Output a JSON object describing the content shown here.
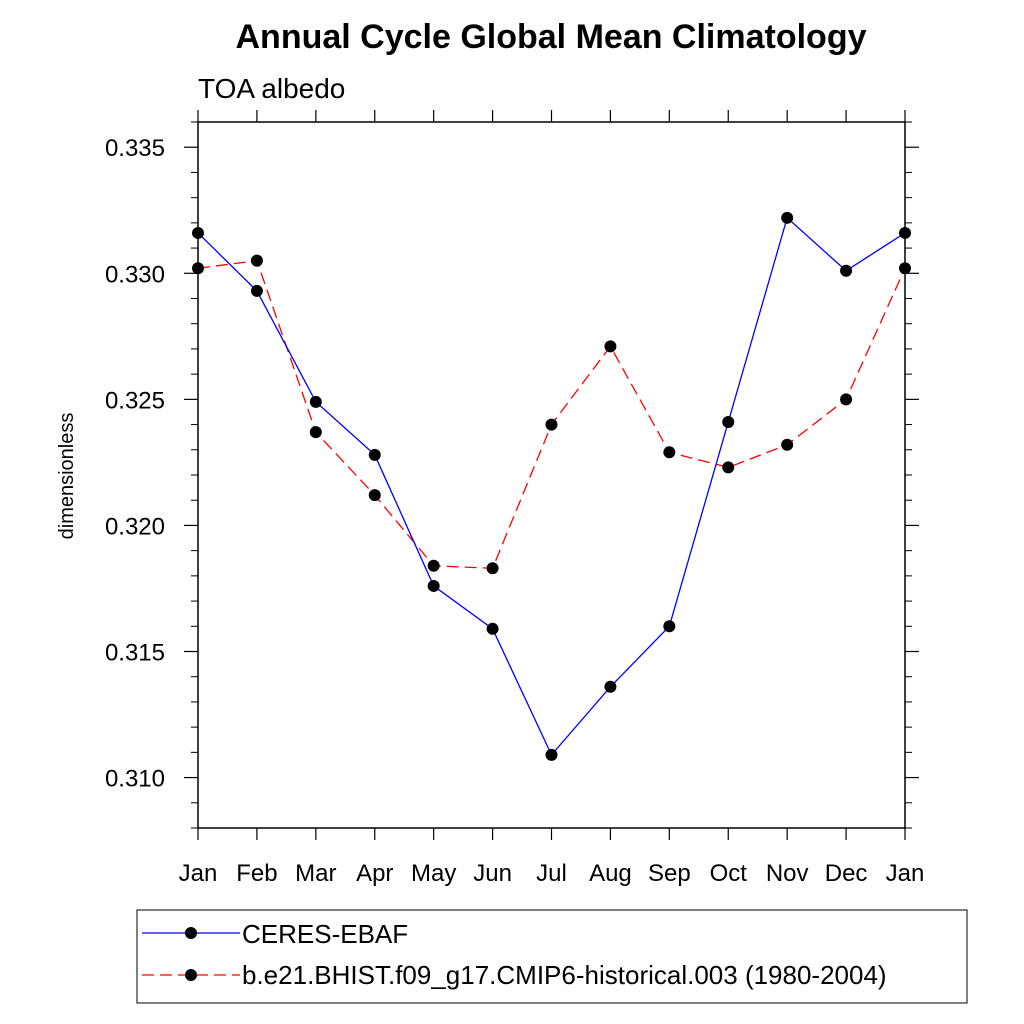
{
  "chart_data": {
    "type": "line",
    "title": "Annual Cycle Global Mean Climatology",
    "subtitle": "TOA albedo",
    "xlabel": "",
    "ylabel": "dimensionless",
    "categories": [
      "Jan",
      "Feb",
      "Mar",
      "Apr",
      "May",
      "Jun",
      "Jul",
      "Aug",
      "Sep",
      "Oct",
      "Nov",
      "Dec",
      "Jan"
    ],
    "ylim": [
      0.308,
      0.336
    ],
    "yticks": [
      0.31,
      0.315,
      0.32,
      0.325,
      0.33,
      0.335
    ],
    "ytick_labels": [
      "0.310",
      "0.315",
      "0.320",
      "0.325",
      "0.330",
      "0.335"
    ],
    "grid": false,
    "legend_position": "bottom",
    "series": [
      {
        "name": "CERES-EBAF",
        "color": "#0000ff",
        "dash": "solid",
        "values": [
          0.3316,
          0.3293,
          0.3249,
          0.3228,
          0.3176,
          0.3159,
          0.3109,
          0.3136,
          0.316,
          0.3241,
          0.3322,
          0.3301,
          0.3316
        ]
      },
      {
        "name": "b.e21.BHIST.f09_g17.CMIP6-historical.003 (1980-2004)",
        "color": "#ff0000",
        "dash": "dashed",
        "values": [
          0.3302,
          0.3305,
          0.3237,
          0.3212,
          0.3184,
          0.3183,
          0.324,
          0.3271,
          0.3229,
          0.3223,
          0.3232,
          0.325,
          0.3302
        ]
      }
    ],
    "marker_color": "#000000"
  }
}
